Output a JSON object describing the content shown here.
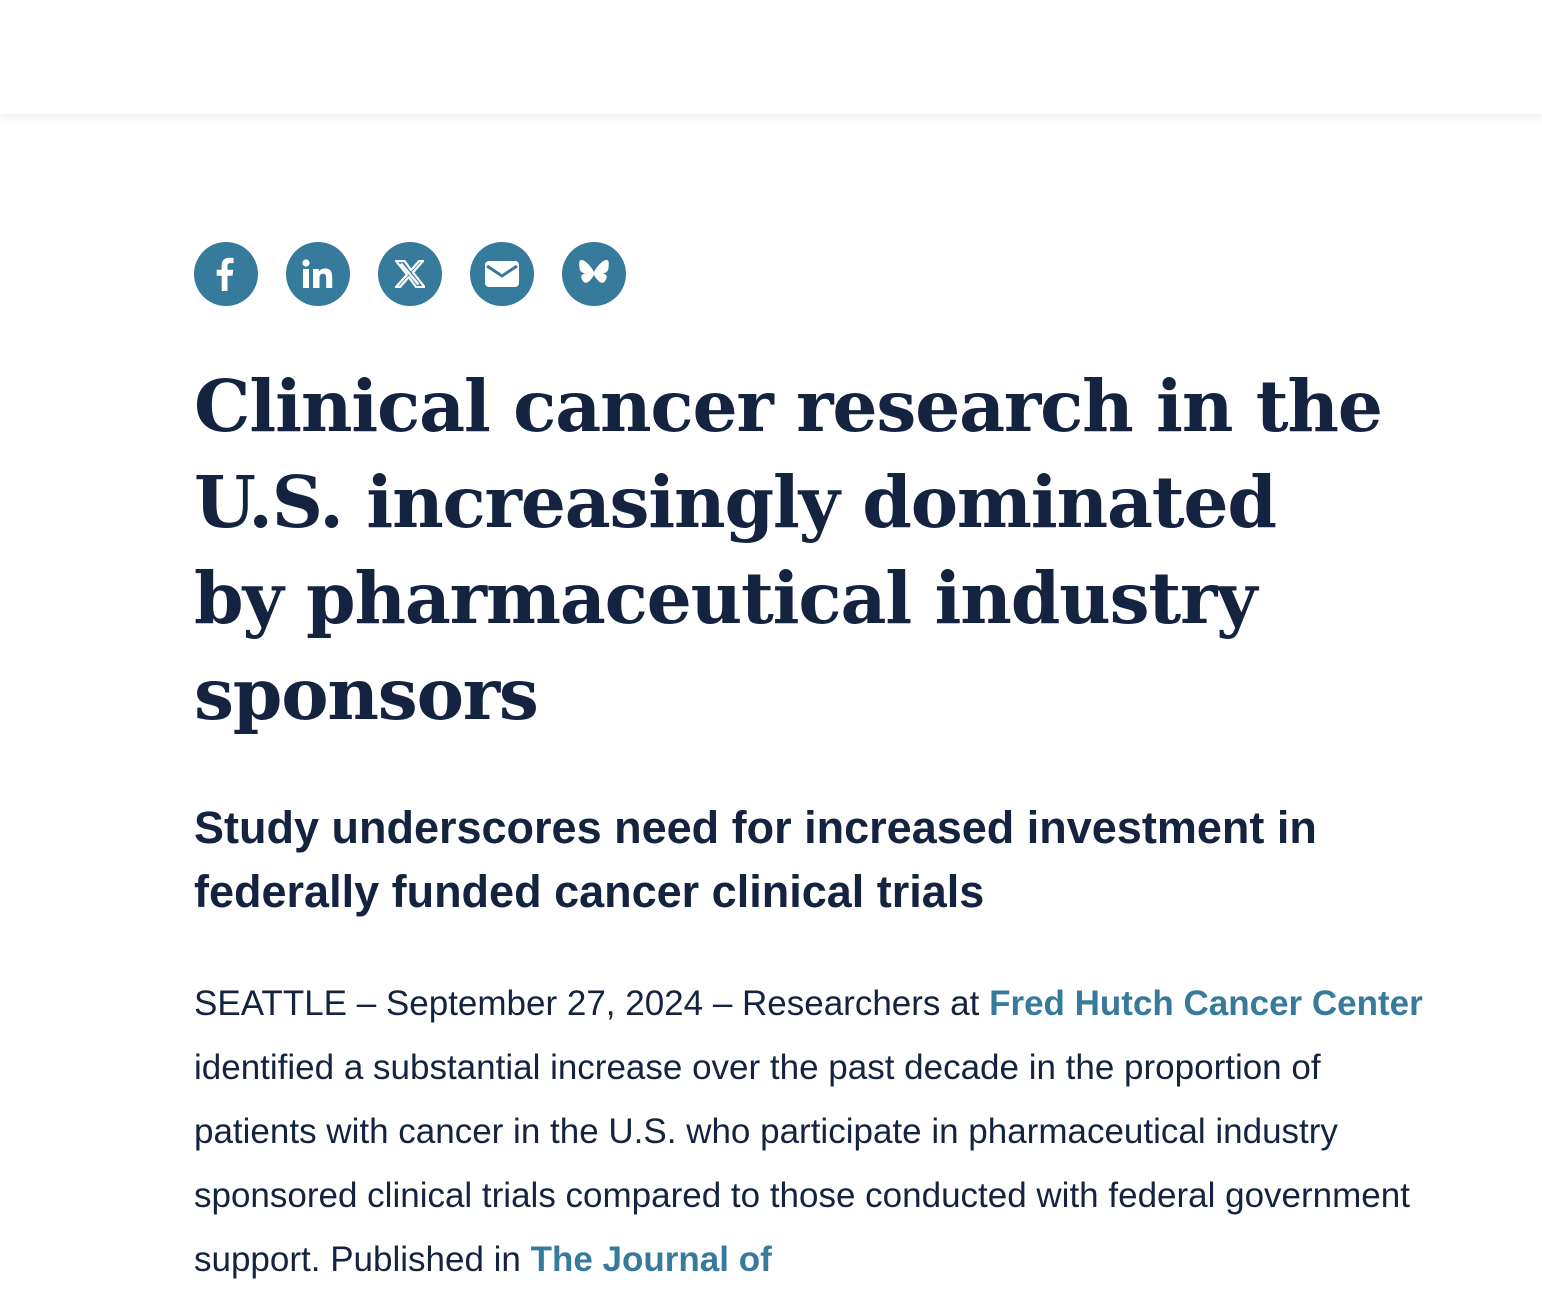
{
  "share": {
    "buttons": [
      {
        "icon": "facebook-icon",
        "label": "f"
      },
      {
        "icon": "linkedin-icon",
        "label": "in"
      },
      {
        "icon": "x-twitter-icon",
        "label": "𝕏"
      },
      {
        "icon": "email-icon"
      },
      {
        "icon": "bluesky-icon"
      }
    ],
    "color": "#367a9c"
  },
  "article": {
    "headline": "Clinical cancer research in the U.S. increasingly dominated by pharmaceutical industry sponsors",
    "subhead": "Study underscores need for increased investment in federally funded cancer clinical trials",
    "body": {
      "intro": "SEATTLE – September 27, 2024 – Researchers at ",
      "link1": "Fred Hutch Cancer Center",
      "middle": " identified a substantial increase over the past decade in the proportion of patients with cancer in the U.S. who participate in pharmaceutical industry sponsored clinical trials compared to those conducted with federal government support. Published in ",
      "link2": "The Journal of"
    }
  },
  "colors": {
    "text": "#14233f",
    "accent": "#367a9c",
    "background": "#ffffff"
  }
}
